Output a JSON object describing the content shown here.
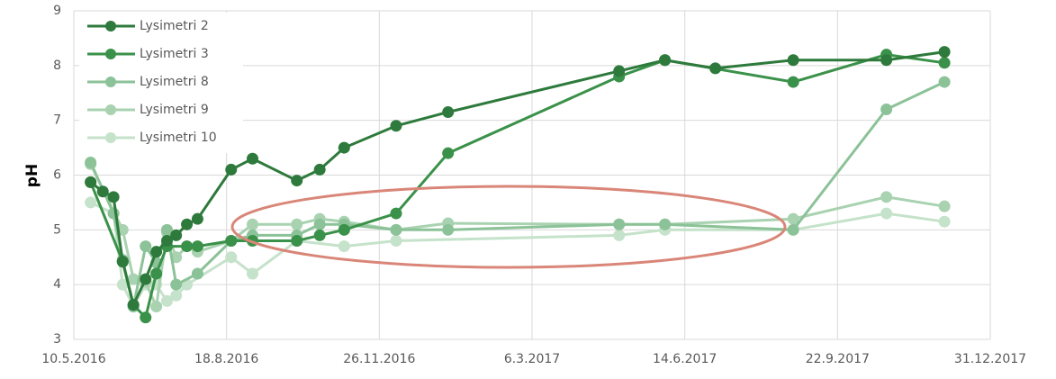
{
  "chart_data": {
    "type": "line",
    "ylabel": "pH",
    "xlim": [
      "2016-05-10",
      "2017-12-31"
    ],
    "xticks": [
      {
        "value": "2016-05-10",
        "label": "10.5.2016"
      },
      {
        "value": "2016-08-18",
        "label": "18.8.2016"
      },
      {
        "value": "2016-11-26",
        "label": "26.11.2016"
      },
      {
        "value": "2017-03-06",
        "label": "6.3.2017"
      },
      {
        "value": "2017-06-14",
        "label": "14.6.2017"
      },
      {
        "value": "2017-09-22",
        "label": "22.9.2017"
      },
      {
        "value": "2017-12-31",
        "label": "31.12.2017"
      }
    ],
    "ylim": [
      3,
      9
    ],
    "yticks": [
      3,
      4,
      5,
      6,
      7,
      8,
      9
    ],
    "grid": true,
    "legend": "top-left",
    "series": [
      {
        "name": "Lysimetri 2",
        "color": "#2e7a3c",
        "x": [
          "2016-05-21",
          "2016-05-29",
          "2016-06-05",
          "2016-06-11",
          "2016-06-18",
          "2016-06-26",
          "2016-07-03",
          "2016-07-10",
          "2016-07-16",
          "2016-07-23",
          "2016-07-30",
          "2016-08-21",
          "2016-09-04",
          "2016-10-03",
          "2016-10-18",
          "2016-11-03",
          "2016-12-07",
          "2017-01-10",
          "2017-05-02",
          "2017-06-01",
          "2017-07-04",
          "2017-08-24",
          "2017-10-24",
          "2017-12-01"
        ],
        "values": [
          5.87,
          5.7,
          5.6,
          4.42,
          3.63,
          4.1,
          4.6,
          4.8,
          4.9,
          5.1,
          5.2,
          6.1,
          6.3,
          5.9,
          6.1,
          6.5,
          6.9,
          7.15,
          7.9,
          8.1,
          7.95,
          8.1,
          8.1,
          8.25
        ]
      },
      {
        "name": "Lysimetri 3",
        "color": "#3a9149",
        "x": [
          "2016-05-21",
          "2016-06-11",
          "2016-06-18",
          "2016-06-26",
          "2016-07-03",
          "2016-07-10",
          "2016-07-23",
          "2016-07-30",
          "2016-08-21",
          "2016-09-04",
          "2016-10-03",
          "2016-10-18",
          "2016-11-03",
          "2016-12-07",
          "2017-01-10",
          "2017-05-02",
          "2017-06-01",
          "2017-08-24",
          "2017-10-24",
          "2017-12-01"
        ],
        "values": [
          5.87,
          4.42,
          3.63,
          3.4,
          4.2,
          4.7,
          4.7,
          4.7,
          4.8,
          4.8,
          4.8,
          4.9,
          5.0,
          5.3,
          6.4,
          7.8,
          8.1,
          7.7,
          8.2,
          8.05
        ]
      },
      {
        "name": "Lysimetri 8",
        "color": "#8cc298",
        "x": [
          "2016-05-21",
          "2016-06-05",
          "2016-06-11",
          "2016-06-18",
          "2016-06-26",
          "2016-07-03",
          "2016-07-10",
          "2016-07-16",
          "2016-07-30",
          "2016-08-21",
          "2016-09-04",
          "2016-10-03",
          "2016-10-18",
          "2016-11-03",
          "2016-12-07",
          "2017-01-10",
          "2017-05-02",
          "2017-06-01",
          "2017-08-24",
          "2017-10-24",
          "2017-12-01"
        ],
        "values": [
          6.23,
          5.3,
          4.45,
          3.6,
          4.7,
          4.4,
          5.0,
          4.0,
          4.2,
          4.8,
          4.9,
          4.9,
          5.1,
          5.1,
          5.0,
          5.0,
          5.1,
          5.1,
          5.0,
          7.2,
          7.7
        ]
      },
      {
        "name": "Lysimetri 9",
        "color": "#a8d2b0",
        "x": [
          "2016-05-21",
          "2016-06-11",
          "2016-06-18",
          "2016-06-26",
          "2016-07-03",
          "2016-07-10",
          "2016-07-16",
          "2016-07-23",
          "2016-07-30",
          "2016-08-21",
          "2016-09-04",
          "2016-10-03",
          "2016-10-18",
          "2016-11-03",
          "2016-12-07",
          "2017-01-10",
          "2017-05-02",
          "2017-06-01",
          "2017-08-24",
          "2017-10-24",
          "2017-12-01"
        ],
        "values": [
          6.2,
          5.0,
          4.1,
          4.05,
          3.6,
          4.95,
          4.5,
          4.7,
          4.6,
          4.8,
          5.1,
          5.1,
          5.2,
          5.15,
          5.0,
          5.12,
          5.1,
          5.1,
          5.2,
          5.6,
          5.43
        ]
      },
      {
        "name": "Lysimetri 10",
        "color": "#c5e2ca",
        "x": [
          "2016-05-21",
          "2016-06-05",
          "2016-06-11",
          "2016-06-18",
          "2016-06-26",
          "2016-07-03",
          "2016-07-10",
          "2016-07-16",
          "2016-07-23",
          "2016-08-21",
          "2016-09-04",
          "2016-10-03",
          "2016-11-03",
          "2016-12-07",
          "2017-05-02",
          "2017-06-01",
          "2017-08-24",
          "2017-10-24",
          "2017-12-01"
        ],
        "values": [
          5.5,
          5.3,
          4.0,
          3.6,
          4.0,
          4.0,
          3.7,
          3.8,
          4.0,
          4.5,
          4.2,
          4.8,
          4.7,
          4.8,
          4.9,
          5.0,
          5.0,
          5.3,
          5.15
        ]
      }
    ]
  }
}
